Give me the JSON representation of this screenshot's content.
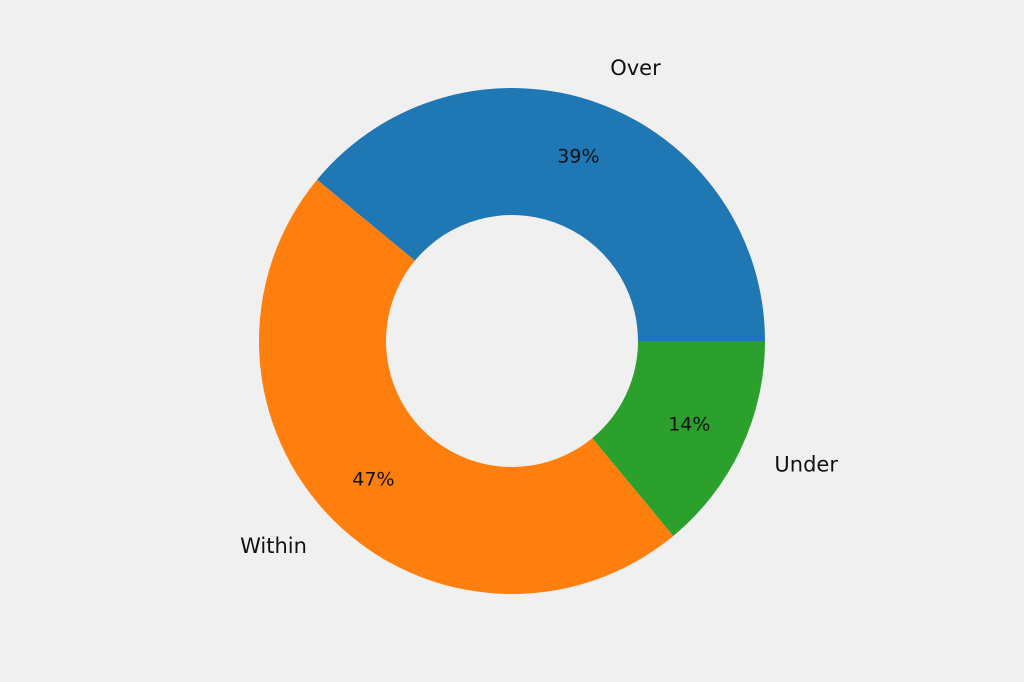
{
  "chart_data": {
    "type": "pie",
    "donut": true,
    "start_angle_deg": 0,
    "direction": "counterclockwise",
    "slices": [
      {
        "label": "Over",
        "value": 39,
        "pct_label": "39%",
        "color": "#1f77b4"
      },
      {
        "label": "Within",
        "value": 47,
        "pct_label": "47%",
        "color": "#ff7f0e"
      },
      {
        "label": "Under",
        "value": 14,
        "pct_label": "14%",
        "color": "#2ca02c"
      }
    ],
    "title": "",
    "legend": "none"
  }
}
